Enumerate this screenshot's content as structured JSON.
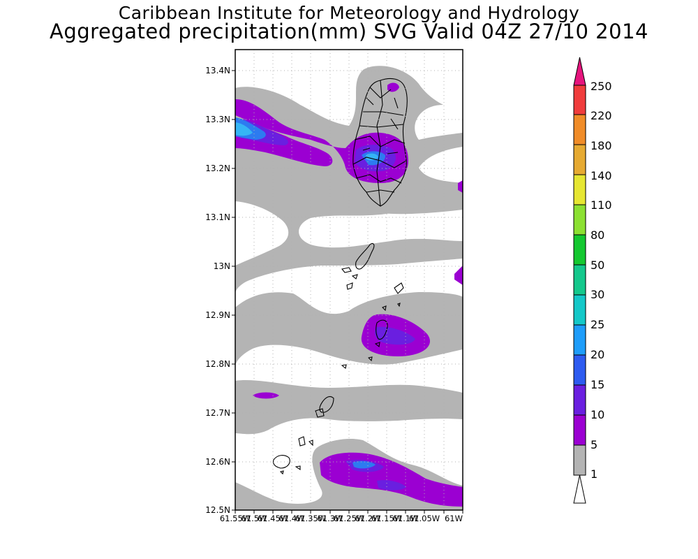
{
  "title_line1": "Caribbean Institute for Meteorology and Hydrology",
  "title_line2": "Aggregated precipitation(mm) SVG Valid 04Z 27/10 2014",
  "map": {
    "lat_labels": [
      "13.4N",
      "13.3N",
      "13.2N",
      "13.1N",
      "13N",
      "12.9N",
      "12.8N",
      "12.7N",
      "12.6N",
      "12.5N"
    ],
    "lon_labels": [
      "61.55W",
      "61.5W",
      "61.45W",
      "61.4W",
      "61.35W",
      "61.3W",
      "61.25W",
      "61.2W",
      "61.15W",
      "61.1W",
      "61.05W",
      "61W"
    ],
    "lat_range": [
      12.5,
      13.45
    ],
    "lon_range": [
      -61.55,
      -61.0
    ],
    "gridlines": true
  },
  "colorbar": {
    "levels": [
      "1",
      "5",
      "10",
      "15",
      "20",
      "25",
      "30",
      "50",
      "80",
      "110",
      "140",
      "180",
      "220",
      "250"
    ],
    "colors": [
      "#ffffff",
      "#b4b4b4",
      "#9b00d2",
      "#6a1fe0",
      "#2d5bf0",
      "#1e9dfa",
      "#14c8c8",
      "#14c88c",
      "#14c830",
      "#8ce032",
      "#e6e632",
      "#e6aa32",
      "#f08c28",
      "#f03c3c",
      "#e6147d"
    ]
  },
  "colors": {
    "light": "#b4b4b4",
    "moderate": "#9b00d2",
    "violet": "#6a1fe0",
    "blue": "#2d7bf0",
    "cyan": "#35b5f5",
    "land_outline": "#000000"
  }
}
